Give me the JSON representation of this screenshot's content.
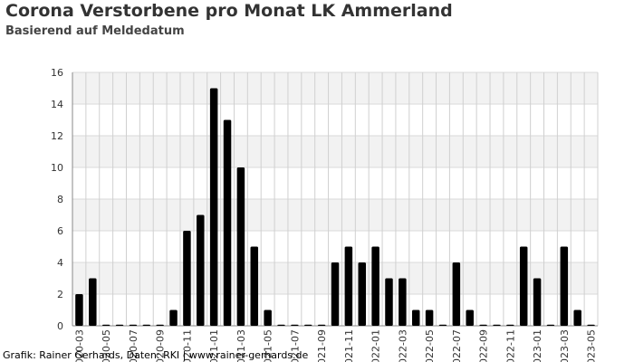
{
  "title": "Corona Verstorbene pro Monat LK Ammerland",
  "subtitle": "Basierend auf Meldedatum",
  "credit": "Grafik: Rainer Gerhards, Daten: RKI | www.rainer-gerhards.de",
  "chart_data": {
    "type": "bar",
    "title": "Corona Verstorbene pro Monat LK Ammerland",
    "subtitle": "Basierend auf Meldedatum",
    "xlabel": "",
    "ylabel": "",
    "ylim": [
      0,
      16
    ],
    "yticks": [
      0,
      2,
      4,
      6,
      8,
      10,
      12,
      14,
      16
    ],
    "grid": true,
    "legend": "none",
    "bar_color": "#000000",
    "band_color": "#f2f2f2",
    "categories": [
      "2020-03",
      "2020-04",
      "2020-05",
      "2020-06",
      "2020-07",
      "2020-08",
      "2020-09",
      "2020-10",
      "2020-11",
      "2020-12",
      "2021-01",
      "2021-02",
      "2021-03",
      "2021-04",
      "2021-05",
      "2021-06",
      "2021-07",
      "2021-08",
      "2021-09",
      "2021-10",
      "2021-11",
      "2021-12",
      "2022-01",
      "2022-02",
      "2022-03",
      "2022-04",
      "2022-05",
      "2022-06",
      "2022-07",
      "2022-08",
      "2022-09",
      "2022-10",
      "2022-11",
      "2022-12",
      "2023-01",
      "2023-02",
      "2023-03",
      "2023-04",
      "2023-05"
    ],
    "values": [
      2,
      3,
      0,
      0,
      0,
      0,
      0,
      1,
      6,
      7,
      15,
      13,
      10,
      5,
      1,
      0,
      0,
      0,
      0,
      4,
      5,
      4,
      5,
      3,
      3,
      1,
      1,
      0,
      4,
      1,
      0,
      0,
      0,
      5,
      3,
      0,
      5,
      1,
      0
    ],
    "xtick_labels": [
      {
        "index": 0,
        "label": "2020-03"
      },
      {
        "index": 2,
        "label": "2020-05"
      },
      {
        "index": 4,
        "label": "2020-07"
      },
      {
        "index": 6,
        "label": "2020-09"
      },
      {
        "index": 8,
        "label": "2020-11"
      },
      {
        "index": 10,
        "label": "2021-01"
      },
      {
        "index": 12,
        "label": "2021-03"
      },
      {
        "index": 14,
        "label": "2021-05"
      },
      {
        "index": 16,
        "label": "2021-07"
      },
      {
        "index": 18,
        "label": "2021-09"
      },
      {
        "index": 20,
        "label": "2021-11"
      },
      {
        "index": 22,
        "label": "2022-01"
      },
      {
        "index": 24,
        "label": "2022-03"
      },
      {
        "index": 26,
        "label": "2022-05"
      },
      {
        "index": 28,
        "label": "2022-07"
      },
      {
        "index": 30,
        "label": "2022-09"
      },
      {
        "index": 32,
        "label": "2022-11"
      },
      {
        "index": 34,
        "label": "2023-01"
      },
      {
        "index": 36,
        "label": "2023-03"
      },
      {
        "index": 38,
        "label": "2023-05"
      }
    ]
  }
}
